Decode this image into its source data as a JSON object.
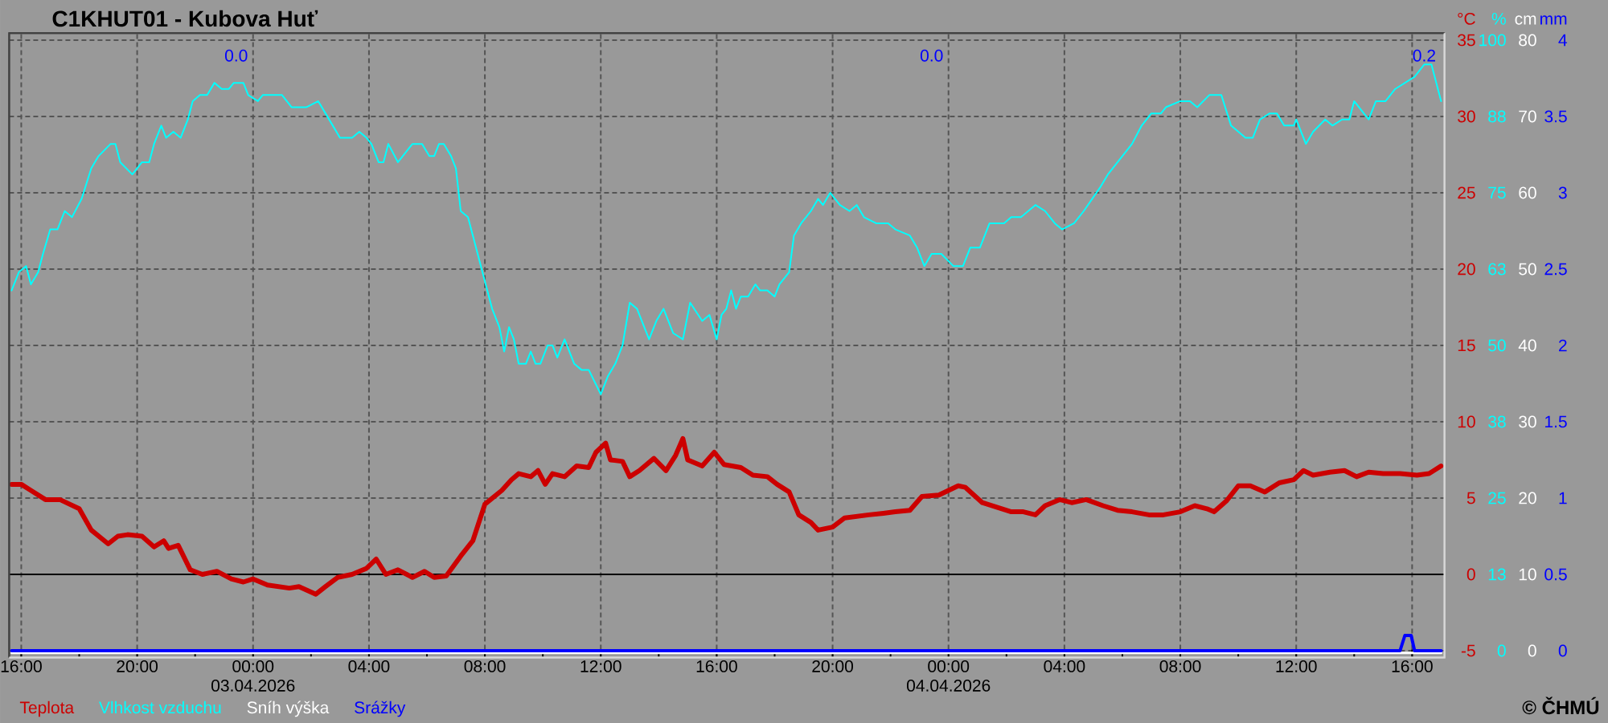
{
  "chart_data": [
    {
      "type": "line",
      "title": "C1KHUT01 - Kubova Huť",
      "ylabel": "°C",
      "y2label": "%",
      "y3label": "cm",
      "xlim": [
        "2026-04-02T15:35",
        "2026-04-04T17:07"
      ],
      "xticks": [
        {
          "value": "2026-04-02T16:00",
          "label": "16:00"
        },
        {
          "value": "2026-04-02T18:00",
          "label": null
        },
        {
          "value": "2026-04-02T20:00",
          "label": "20:00"
        },
        {
          "value": "2026-04-02T22:00",
          "label": null
        },
        {
          "value": "2026-04-03T00:00",
          "label": "00:00 03.04.2026"
        },
        {
          "value": "2026-04-03T02:00",
          "label": null
        },
        {
          "value": "2026-04-03T04:00",
          "label": "04:00"
        },
        {
          "value": "2026-04-03T06:00",
          "label": null
        },
        {
          "value": "2026-04-03T08:00",
          "label": "08:00"
        },
        {
          "value": "2026-04-03T10:00",
          "label": null
        },
        {
          "value": "2026-04-03T12:00",
          "label": "12:00"
        },
        {
          "value": "2026-04-03T14:00",
          "label": null
        },
        {
          "value": "2026-04-03T16:00",
          "label": "16:00"
        },
        {
          "value": "2026-04-03T18:00",
          "label": null
        },
        {
          "value": "2026-04-03T20:00",
          "label": "20:00"
        },
        {
          "value": "2026-04-03T22:00",
          "label": null
        },
        {
          "value": "2026-04-04T00:00",
          "label": "00:00 04.04.2026"
        },
        {
          "value": "2026-04-04T02:00",
          "label": null
        },
        {
          "value": "2026-04-04T04:00",
          "label": "04:00"
        },
        {
          "value": "2026-04-04T06:00",
          "label": null
        },
        {
          "value": "2026-04-04T08:00",
          "label": "08:00"
        },
        {
          "value": "2026-04-04T10:00",
          "label": null
        },
        {
          "value": "2026-04-04T12:00",
          "label": "12:00"
        },
        {
          "value": "2026-04-04T14:00",
          "label": null
        },
        {
          "value": "2026-04-04T16:00",
          "label": "16:00"
        }
      ],
      "ylim": [
        -5.45,
        35.45
      ],
      "yticks": [
        -5,
        0,
        5,
        10,
        15,
        20,
        25,
        30,
        35
      ],
      "y2lim": [
        -1.125,
        101.125
      ],
      "y2ticks": [
        0,
        {
          "value": 12.5,
          "label": "13"
        },
        25,
        {
          "value": 37.5,
          "label": "38"
        },
        50,
        {
          "value": 62.5,
          "label": "63"
        },
        75,
        {
          "value": 87.5,
          "label": "88"
        },
        100
      ],
      "y3lim": [
        -0.9,
        80.9
      ],
      "y3ticks": [
        0,
        10,
        20,
        30,
        40,
        50,
        60,
        70,
        80
      ],
      "grid": true,
      "legend": "bottom left",
      "ref_lines": [
        {
          "axis": "y",
          "value": 0,
          "color": "#000000"
        }
      ],
      "annotations": [
        "© ČHMÚ"
      ],
      "series": [
        {
          "name": "Teplota",
          "color": "#cc0000",
          "x": [
            "2026-04-02T15:40",
            "2026-04-02T16:00",
            "2026-04-02T16:20",
            "2026-04-02T16:50",
            "2026-04-02T17:20",
            "2026-04-02T17:40",
            "2026-04-02T18:00",
            "2026-04-02T18:25",
            "2026-04-02T19:00",
            "2026-04-02T19:20",
            "2026-04-02T19:40",
            "2026-04-02T20:10",
            "2026-04-02T20:35",
            "2026-04-02T20:55",
            "2026-04-02T21:05",
            "2026-04-02T21:25",
            "2026-04-02T21:50",
            "2026-04-02T22:15",
            "2026-04-02T22:45",
            "2026-04-02T23:15",
            "2026-04-02T23:40",
            "2026-04-03T00:00",
            "2026-04-03T00:30",
            "2026-04-03T01:15",
            "2026-04-03T01:35",
            "2026-04-03T02:10",
            "2026-04-03T02:30",
            "2026-04-03T02:55",
            "2026-04-03T03:25",
            "2026-04-03T03:55",
            "2026-04-03T04:15",
            "2026-04-03T04:35",
            "2026-04-03T05:00",
            "2026-04-03T05:30",
            "2026-04-03T05:55",
            "2026-04-03T06:15",
            "2026-04-03T06:40",
            "2026-04-03T07:10",
            "2026-04-03T07:35",
            "2026-04-03T08:00",
            "2026-04-03T08:35",
            "2026-04-03T08:55",
            "2026-04-03T09:10",
            "2026-04-03T09:35",
            "2026-04-03T09:50",
            "2026-04-03T10:05",
            "2026-04-03T10:20",
            "2026-04-03T10:45",
            "2026-04-03T11:10",
            "2026-04-03T11:35",
            "2026-04-03T11:50",
            "2026-04-03T12:10",
            "2026-04-03T12:20",
            "2026-04-03T12:45",
            "2026-04-03T13:00",
            "2026-04-03T13:20",
            "2026-04-03T13:50",
            "2026-04-03T14:15",
            "2026-04-03T14:35",
            "2026-04-03T14:50",
            "2026-04-03T15:00",
            "2026-04-03T15:30",
            "2026-04-03T15:55",
            "2026-04-03T16:15",
            "2026-04-03T16:50",
            "2026-04-03T17:15",
            "2026-04-03T17:45",
            "2026-04-03T18:05",
            "2026-04-03T18:30",
            "2026-04-03T18:50",
            "2026-04-03T19:15",
            "2026-04-03T19:30",
            "2026-04-03T20:00",
            "2026-04-03T20:25",
            "2026-04-03T20:50",
            "2026-04-03T21:15",
            "2026-04-03T21:45",
            "2026-04-03T22:10",
            "2026-04-03T22:40",
            "2026-04-03T23:05",
            "2026-04-03T23:40",
            "2026-04-04T00:20",
            "2026-04-04T00:35",
            "2026-04-04T01:10",
            "2026-04-04T01:40",
            "2026-04-04T02:10",
            "2026-04-04T02:35",
            "2026-04-04T03:00",
            "2026-04-04T03:20",
            "2026-04-04T03:50",
            "2026-04-04T04:15",
            "2026-04-04T04:45",
            "2026-04-04T05:20",
            "2026-04-04T05:50",
            "2026-04-04T06:20",
            "2026-04-04T06:55",
            "2026-04-04T07:25",
            "2026-04-04T08:00",
            "2026-04-04T08:30",
            "2026-04-04T08:55",
            "2026-04-04T09:10",
            "2026-04-04T09:35",
            "2026-04-04T10:00",
            "2026-04-04T10:25",
            "2026-04-04T10:55",
            "2026-04-04T11:25",
            "2026-04-04T11:55",
            "2026-04-04T12:15",
            "2026-04-04T12:35",
            "2026-04-04T13:10",
            "2026-04-04T13:40",
            "2026-04-04T14:05",
            "2026-04-04T14:30",
            "2026-04-04T15:00",
            "2026-04-04T15:35",
            "2026-04-04T16:10",
            "2026-04-04T16:35",
            "2026-04-04T17:00"
          ],
          "values": [
            5.9,
            5.9,
            5.5,
            4.9,
            4.9,
            4.6,
            4.3,
            2.9,
            2.0,
            2.5,
            2.6,
            2.5,
            1.8,
            2.2,
            1.7,
            1.9,
            0.3,
            0.0,
            0.2,
            -0.3,
            -0.5,
            -0.3,
            -0.7,
            -0.9,
            -0.8,
            -1.3,
            -0.8,
            -0.2,
            0.0,
            0.4,
            1.0,
            0.0,
            0.3,
            -0.2,
            0.2,
            -0.2,
            -0.1,
            1.2,
            2.2,
            4.6,
            5.5,
            6.2,
            6.6,
            6.4,
            6.8,
            5.9,
            6.6,
            6.4,
            7.1,
            7.0,
            8.0,
            8.6,
            7.5,
            7.4,
            6.4,
            6.8,
            7.6,
            6.8,
            7.8,
            8.9,
            7.5,
            7.1,
            8.0,
            7.2,
            7.0,
            6.5,
            6.4,
            5.9,
            5.4,
            3.9,
            3.4,
            2.9,
            3.1,
            3.7,
            3.8,
            3.9,
            4.0,
            4.1,
            4.2,
            5.1,
            5.2,
            5.8,
            5.7,
            4.7,
            4.4,
            4.1,
            4.1,
            3.9,
            4.5,
            4.9,
            4.7,
            4.9,
            4.5,
            4.2,
            4.1,
            3.9,
            3.9,
            4.1,
            4.5,
            4.3,
            4.1,
            4.8,
            5.8,
            5.8,
            5.4,
            6.0,
            6.2,
            6.8,
            6.5,
            6.7,
            6.8,
            6.4,
            6.7,
            6.6,
            6.6,
            6.5,
            6.6,
            7.1
          ]
        },
        {
          "name": "Vlhkost vzduchu",
          "color": "#00ffff",
          "axis": "y2",
          "x": [
            "2026-04-02T15:40",
            "2026-04-02T15:55",
            "2026-04-02T16:10",
            "2026-04-02T16:20",
            "2026-04-02T16:35",
            "2026-04-02T16:45",
            "2026-04-02T17:00",
            "2026-04-02T17:15",
            "2026-04-02T17:30",
            "2026-04-02T17:45",
            "2026-04-02T18:05",
            "2026-04-02T18:25",
            "2026-04-02T18:40",
            "2026-04-02T19:05",
            "2026-04-02T19:15",
            "2026-04-02T19:25",
            "2026-04-02T19:50",
            "2026-04-02T20:10",
            "2026-04-02T20:25",
            "2026-04-02T20:35",
            "2026-04-02T20:50",
            "2026-04-02T21:00",
            "2026-04-02T21:15",
            "2026-04-02T21:30",
            "2026-04-02T21:45",
            "2026-04-02T21:55",
            "2026-04-02T22:10",
            "2026-04-02T22:25",
            "2026-04-02T22:40",
            "2026-04-02T22:55",
            "2026-04-02T23:10",
            "2026-04-02T23:20",
            "2026-04-02T23:40",
            "2026-04-02T23:50",
            "2026-04-03T00:10",
            "2026-04-03T00:20",
            "2026-04-03T00:30",
            "2026-04-03T01:00",
            "2026-04-03T01:20",
            "2026-04-03T01:50",
            "2026-04-03T02:15",
            "2026-04-03T02:30",
            "2026-04-03T03:00",
            "2026-04-03T03:25",
            "2026-04-03T03:40",
            "2026-04-03T03:55",
            "2026-04-03T04:05",
            "2026-04-03T04:20",
            "2026-04-03T04:30",
            "2026-04-03T04:40",
            "2026-04-03T05:00",
            "2026-04-03T05:20",
            "2026-04-03T05:30",
            "2026-04-03T05:50",
            "2026-04-03T06:05",
            "2026-04-03T06:15",
            "2026-04-03T06:25",
            "2026-04-03T06:35",
            "2026-04-03T06:50",
            "2026-04-03T07:00",
            "2026-04-03T07:10",
            "2026-04-03T07:25",
            "2026-04-03T07:35",
            "2026-04-03T07:45",
            "2026-04-03T07:55",
            "2026-04-03T08:05",
            "2026-04-03T08:15",
            "2026-04-03T08:30",
            "2026-04-03T08:40",
            "2026-04-03T08:50",
            "2026-04-03T09:00",
            "2026-04-03T09:10",
            "2026-04-03T09:25",
            "2026-04-03T09:35",
            "2026-04-03T09:45",
            "2026-04-03T09:55",
            "2026-04-03T10:10",
            "2026-04-03T10:20",
            "2026-04-03T10:30",
            "2026-04-03T10:45",
            "2026-04-03T11:05",
            "2026-04-03T11:20",
            "2026-04-03T11:35",
            "2026-04-03T12:00",
            "2026-04-03T12:15",
            "2026-04-03T12:30",
            "2026-04-03T12:45",
            "2026-04-03T13:00",
            "2026-04-03T13:15",
            "2026-04-03T13:40",
            "2026-04-03T13:55",
            "2026-04-03T14:10",
            "2026-04-03T14:30",
            "2026-04-03T14:50",
            "2026-04-03T15:05",
            "2026-04-03T15:30",
            "2026-04-03T15:45",
            "2026-04-03T16:00",
            "2026-04-03T16:10",
            "2026-04-03T16:20",
            "2026-04-03T16:30",
            "2026-04-03T16:40",
            "2026-04-03T16:50",
            "2026-04-03T17:05",
            "2026-04-03T17:20",
            "2026-04-03T17:30",
            "2026-04-03T17:45",
            "2026-04-03T18:00",
            "2026-04-03T18:10",
            "2026-04-03T18:30",
            "2026-04-03T18:40",
            "2026-04-03T18:55",
            "2026-04-03T19:15",
            "2026-04-03T19:30",
            "2026-04-03T19:40",
            "2026-04-03T19:55",
            "2026-04-03T20:15",
            "2026-04-03T20:35",
            "2026-04-03T20:50",
            "2026-04-03T21:05",
            "2026-04-03T21:30",
            "2026-04-03T21:55",
            "2026-04-03T22:10",
            "2026-04-03T22:40",
            "2026-04-03T22:55",
            "2026-04-03T23:10",
            "2026-04-03T23:25",
            "2026-04-03T23:45",
            "2026-04-04T00:10",
            "2026-04-04T00:30",
            "2026-04-04T00:45",
            "2026-04-04T01:05",
            "2026-04-04T01:25",
            "2026-04-04T01:55",
            "2026-04-04T02:10",
            "2026-04-04T02:30",
            "2026-04-04T03:00",
            "2026-04-04T03:20",
            "2026-04-04T03:40",
            "2026-04-04T03:55",
            "2026-04-04T04:20",
            "2026-04-04T04:40",
            "2026-04-04T05:15",
            "2026-04-04T05:30",
            "2026-04-04T06:00",
            "2026-04-04T06:20",
            "2026-04-04T06:40",
            "2026-04-04T07:00",
            "2026-04-04T07:20",
            "2026-04-04T07:30",
            "2026-04-04T08:00",
            "2026-04-04T08:20",
            "2026-04-04T08:35",
            "2026-04-04T09:00",
            "2026-04-04T09:25",
            "2026-04-04T09:45",
            "2026-04-04T10:15",
            "2026-04-04T10:30",
            "2026-04-04T10:45",
            "2026-04-04T11:05",
            "2026-04-04T11:20",
            "2026-04-04T11:35",
            "2026-04-04T11:55",
            "2026-04-04T12:00",
            "2026-04-04T12:20",
            "2026-04-04T12:35",
            "2026-04-04T13:00",
            "2026-04-04T13:15",
            "2026-04-04T13:35",
            "2026-04-04T13:50",
            "2026-04-04T14:00",
            "2026-04-04T14:20",
            "2026-04-04T14:30",
            "2026-04-04T14:45",
            "2026-04-04T15:05",
            "2026-04-04T15:25",
            "2026-04-04T15:45",
            "2026-04-04T16:05",
            "2026-04-04T16:25",
            "2026-04-04T16:40",
            "2026-04-04T17:00"
          ],
          "values": [
            59,
            62,
            63,
            60,
            62,
            65,
            69,
            69,
            72,
            71,
            74,
            79,
            81,
            83,
            83,
            80,
            78,
            80,
            80,
            83,
            86,
            84,
            85,
            84,
            87,
            90,
            91,
            91,
            93,
            92,
            92,
            93,
            93,
            91,
            90,
            91,
            91,
            91,
            89,
            89,
            90,
            88,
            84,
            84,
            85,
            84,
            83,
            80,
            80,
            83,
            80,
            82,
            83,
            83,
            81,
            81,
            83,
            83,
            81,
            79,
            72,
            71,
            68,
            65,
            62,
            59,
            56,
            53,
            49,
            53,
            51,
            47,
            47,
            49,
            47,
            47,
            50,
            50,
            48,
            51,
            47,
            46,
            46,
            42,
            45,
            47,
            50,
            57,
            56,
            51,
            54,
            56,
            52,
            51,
            57,
            54,
            55,
            51,
            55,
            56,
            59,
            56,
            58,
            58,
            60,
            59,
            59,
            58,
            60,
            62,
            68,
            70,
            72,
            74,
            73,
            75,
            73,
            72,
            73,
            71,
            70,
            70,
            69,
            68,
            66,
            63,
            65,
            65,
            63,
            63,
            66,
            66,
            70,
            70,
            71,
            71,
            73,
            72,
            70,
            69,
            70,
            72,
            76,
            78,
            81,
            83,
            86,
            88,
            88,
            89,
            90,
            90,
            89,
            91,
            91,
            86,
            84,
            84,
            87,
            88,
            88,
            86,
            86,
            87,
            83,
            85,
            87,
            86,
            87,
            87,
            90,
            88,
            87,
            90,
            90,
            92,
            93,
            94,
            96,
            96,
            90
          ]
        },
        {
          "name": "Sníh výška",
          "color": "#ffffff",
          "axis": "y3",
          "x": [
            "2026-04-02T15:40",
            "2026-04-04T17:00"
          ],
          "values": [
            -0.3,
            -0.3
          ]
        }
      ]
    },
    {
      "type": "line",
      "ylabel": "mm",
      "xlim": [
        "2026-04-02T15:35",
        "2026-04-04T17:07"
      ],
      "ylim": [
        -0.045,
        4.045
      ],
      "yticks": [
        0,
        0.5,
        1,
        1.5,
        2,
        2.5,
        3,
        3.5,
        4
      ],
      "tick_labels": "y",
      "legend": "bottom left",
      "annotations": [
        "0.0",
        "0.0",
        "0.2"
      ],
      "series": [
        {
          "name": "Srážky",
          "color": "#0000ff",
          "x": [
            "2026-04-02T15:40",
            "2026-04-04T15:35",
            "2026-04-04T15:45",
            "2026-04-04T15:58",
            "2026-04-04T16:05",
            "2026-04-04T17:00"
          ],
          "values": [
            0,
            0,
            0.1,
            0.1,
            0,
            0
          ]
        }
      ]
    }
  ]
}
